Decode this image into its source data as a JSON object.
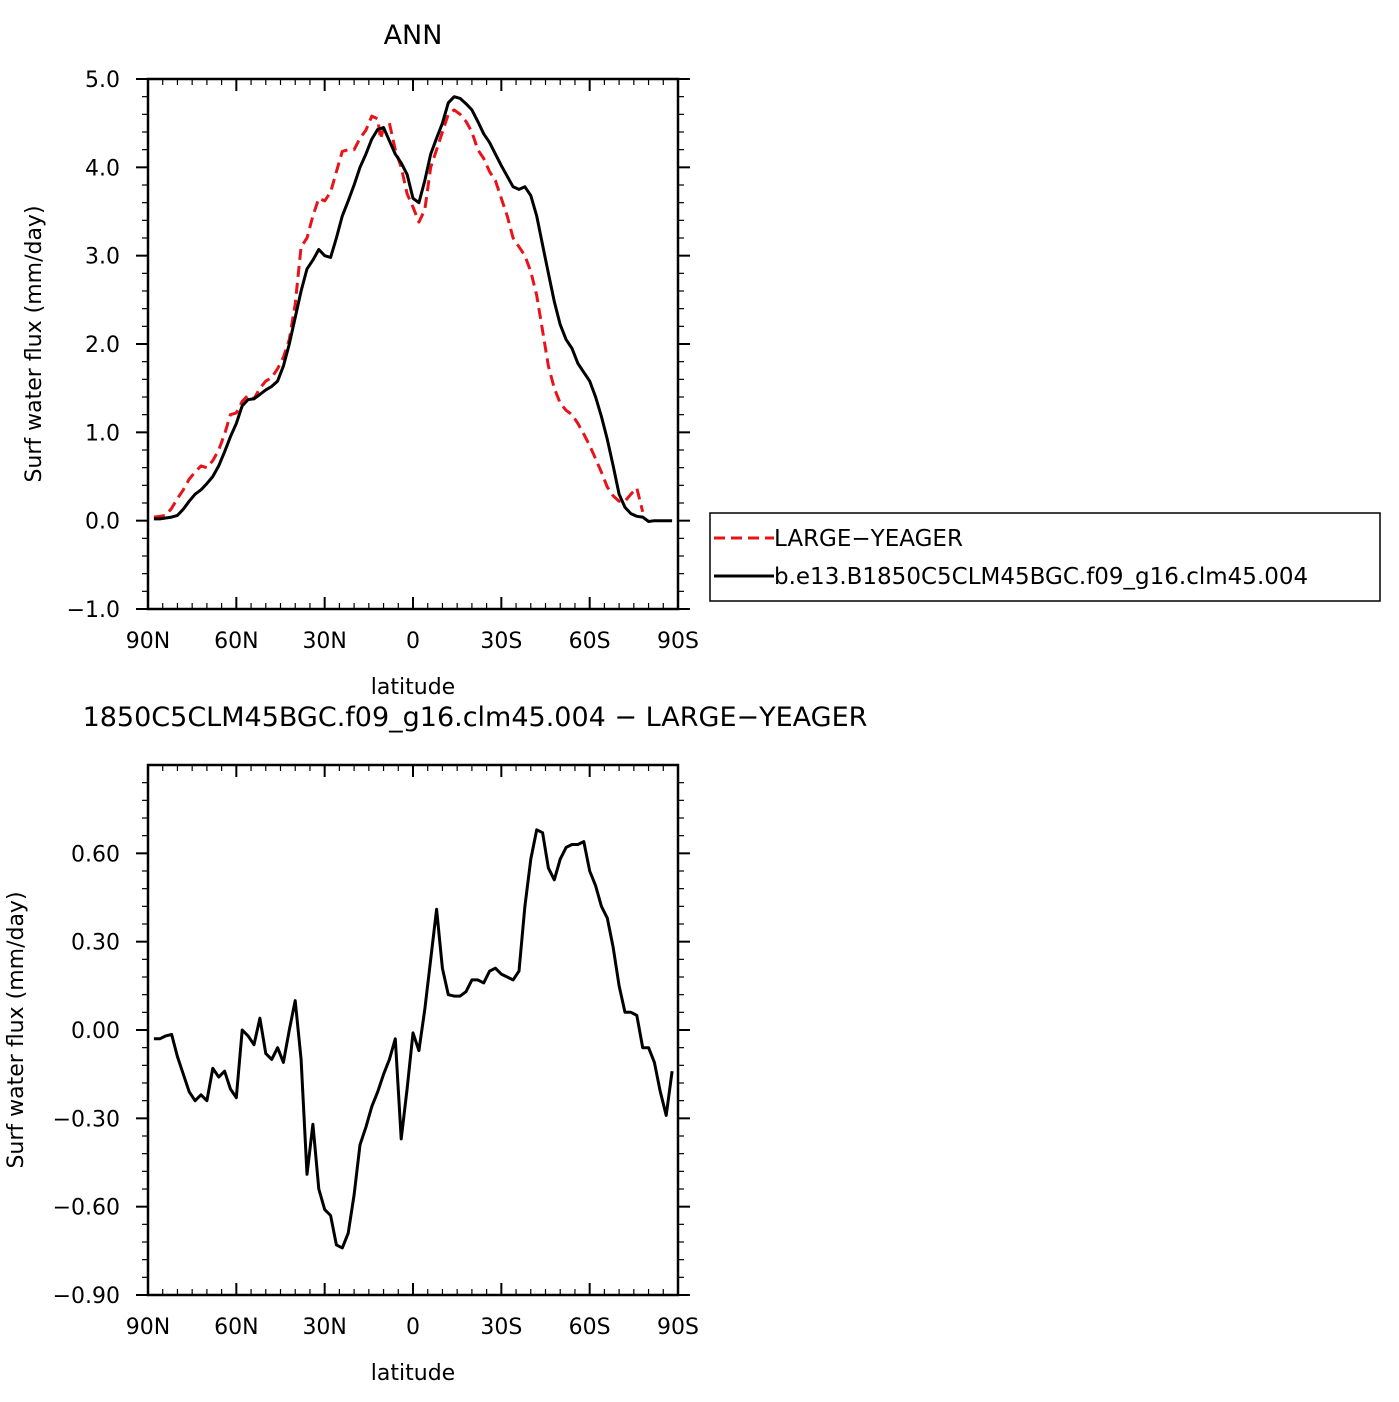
{
  "chart_data": [
    {
      "type": "line",
      "title": "ANN",
      "xlabel": "latitude",
      "ylabel": "Surf water flux (mm/day)",
      "xlim": [
        -90,
        90
      ],
      "ylim": [
        -1.0,
        5.0
      ],
      "x_tick_values": [
        -90,
        -60,
        -30,
        0,
        30,
        60,
        90
      ],
      "x_tick_labels": [
        "90N",
        "60N",
        "30N",
        "0",
        "30S",
        "60S",
        "90S"
      ],
      "y_tick_values": [
        -1.0,
        0.0,
        1.0,
        2.0,
        3.0,
        4.0,
        5.0
      ],
      "y_tick_labels": [
        "−1.0",
        "0.0",
        "1.0",
        "2.0",
        "3.0",
        "4.0",
        "5.0"
      ],
      "grid": false,
      "legend_position": "right",
      "series": [
        {
          "name": "LARGE−YEAGER",
          "color": "#e8141a",
          "dash": "dashed",
          "points": [
            [
              -88,
              0.04
            ],
            [
              -86,
              0.05
            ],
            [
              -84,
              0.06
            ],
            [
              -82,
              0.14
            ],
            [
              -80,
              0.25
            ],
            [
              -78,
              0.35
            ],
            [
              -76,
              0.47
            ],
            [
              -74,
              0.55
            ],
            [
              -72,
              0.62
            ],
            [
              -70,
              0.6
            ],
            [
              -68,
              0.68
            ],
            [
              -66,
              0.8
            ],
            [
              -64,
              0.98
            ],
            [
              -62,
              1.2
            ],
            [
              -60,
              1.22
            ],
            [
              -58,
              1.35
            ],
            [
              -56,
              1.42
            ],
            [
              -54,
              1.38
            ],
            [
              -52,
              1.5
            ],
            [
              -50,
              1.58
            ],
            [
              -48,
              1.62
            ],
            [
              -46,
              1.72
            ],
            [
              -44,
              1.85
            ],
            [
              -42,
              2.05
            ],
            [
              -40,
              2.45
            ],
            [
              -38,
              3.1
            ],
            [
              -36,
              3.2
            ],
            [
              -34,
              3.45
            ],
            [
              -32,
              3.65
            ],
            [
              -30,
              3.62
            ],
            [
              -28,
              3.72
            ],
            [
              -26,
              3.95
            ],
            [
              -24,
              4.18
            ],
            [
              -22,
              4.2
            ],
            [
              -20,
              4.2
            ],
            [
              -18,
              4.33
            ],
            [
              -16,
              4.42
            ],
            [
              -14,
              4.58
            ],
            [
              -12,
              4.55
            ],
            [
              -11,
              4.32
            ],
            [
              -10,
              4.45
            ],
            [
              -8,
              4.5
            ],
            [
              -6,
              4.2
            ],
            [
              -4,
              4.0
            ],
            [
              -2,
              3.7
            ],
            [
              0,
              3.55
            ],
            [
              2,
              3.38
            ],
            [
              4,
              3.52
            ],
            [
              6,
              4.0
            ],
            [
              8,
              4.2
            ],
            [
              10,
              4.4
            ],
            [
              12,
              4.6
            ],
            [
              14,
              4.65
            ],
            [
              16,
              4.6
            ],
            [
              18,
              4.52
            ],
            [
              20,
              4.4
            ],
            [
              22,
              4.2
            ],
            [
              24,
              4.1
            ],
            [
              26,
              3.95
            ],
            [
              28,
              3.85
            ],
            [
              30,
              3.65
            ],
            [
              32,
              3.45
            ],
            [
              34,
              3.2
            ],
            [
              36,
              3.1
            ],
            [
              38,
              3.0
            ],
            [
              40,
              2.82
            ],
            [
              42,
              2.55
            ],
            [
              44,
              2.15
            ],
            [
              46,
              1.75
            ],
            [
              48,
              1.5
            ],
            [
              50,
              1.33
            ],
            [
              52,
              1.25
            ],
            [
              54,
              1.2
            ],
            [
              56,
              1.1
            ],
            [
              58,
              0.98
            ],
            [
              60,
              0.85
            ],
            [
              62,
              0.7
            ],
            [
              64,
              0.55
            ],
            [
              66,
              0.38
            ],
            [
              68,
              0.28
            ],
            [
              70,
              0.22
            ],
            [
              72,
              0.22
            ],
            [
              74,
              0.3
            ],
            [
              76,
              0.37
            ],
            [
              78,
              0.1
            ]
          ]
        },
        {
          "name": "b.e13.B1850C5CLM45BGC.f09_g16.clm45.004",
          "color": "#000000",
          "dash": "solid",
          "points": [
            [
              -88,
              0.02
            ],
            [
              -86,
              0.02
            ],
            [
              -84,
              0.03
            ],
            [
              -82,
              0.04
            ],
            [
              -80,
              0.06
            ],
            [
              -78,
              0.13
            ],
            [
              -76,
              0.22
            ],
            [
              -74,
              0.3
            ],
            [
              -72,
              0.35
            ],
            [
              -70,
              0.42
            ],
            [
              -68,
              0.5
            ],
            [
              -66,
              0.62
            ],
            [
              -64,
              0.78
            ],
            [
              -62,
              0.95
            ],
            [
              -60,
              1.1
            ],
            [
              -58,
              1.3
            ],
            [
              -56,
              1.37
            ],
            [
              -54,
              1.38
            ],
            [
              -52,
              1.43
            ],
            [
              -50,
              1.48
            ],
            [
              -48,
              1.52
            ],
            [
              -46,
              1.58
            ],
            [
              -44,
              1.75
            ],
            [
              -42,
              2.0
            ],
            [
              -40,
              2.3
            ],
            [
              -38,
              2.6
            ],
            [
              -36,
              2.85
            ],
            [
              -34,
              2.95
            ],
            [
              -32,
              3.07
            ],
            [
              -30,
              3.0
            ],
            [
              -28,
              2.98
            ],
            [
              -26,
              3.2
            ],
            [
              -24,
              3.45
            ],
            [
              -22,
              3.62
            ],
            [
              -20,
              3.8
            ],
            [
              -18,
              4.0
            ],
            [
              -16,
              4.15
            ],
            [
              -14,
              4.32
            ],
            [
              -12,
              4.43
            ],
            [
              -10,
              4.45
            ],
            [
              -8,
              4.3
            ],
            [
              -6,
              4.15
            ],
            [
              -4,
              4.05
            ],
            [
              -2,
              3.92
            ],
            [
              0,
              3.65
            ],
            [
              2,
              3.6
            ],
            [
              4,
              3.85
            ],
            [
              6,
              4.15
            ],
            [
              8,
              4.33
            ],
            [
              10,
              4.5
            ],
            [
              12,
              4.73
            ],
            [
              14,
              4.8
            ],
            [
              16,
              4.78
            ],
            [
              18,
              4.72
            ],
            [
              20,
              4.65
            ],
            [
              22,
              4.52
            ],
            [
              24,
              4.38
            ],
            [
              26,
              4.28
            ],
            [
              28,
              4.15
            ],
            [
              30,
              4.02
            ],
            [
              32,
              3.9
            ],
            [
              34,
              3.78
            ],
            [
              36,
              3.75
            ],
            [
              38,
              3.78
            ],
            [
              40,
              3.68
            ],
            [
              42,
              3.45
            ],
            [
              44,
              3.12
            ],
            [
              46,
              2.8
            ],
            [
              48,
              2.48
            ],
            [
              50,
              2.22
            ],
            [
              52,
              2.05
            ],
            [
              54,
              1.95
            ],
            [
              56,
              1.78
            ],
            [
              58,
              1.68
            ],
            [
              60,
              1.58
            ],
            [
              62,
              1.4
            ],
            [
              64,
              1.18
            ],
            [
              66,
              0.92
            ],
            [
              68,
              0.62
            ],
            [
              70,
              0.3
            ],
            [
              72,
              0.15
            ],
            [
              74,
              0.08
            ],
            [
              76,
              0.05
            ],
            [
              78,
              0.04
            ],
            [
              80,
              -0.01
            ],
            [
              82,
              0.0
            ],
            [
              84,
              0.0
            ],
            [
              86,
              0.0
            ],
            [
              88,
              0.0
            ]
          ]
        }
      ]
    },
    {
      "type": "line",
      "title": "1850C5CLM45BGC.f09_g16.clm45.004 − LARGE−YEAGER",
      "xlabel": "latitude",
      "ylabel": "Surf water flux (mm/day)",
      "xlim": [
        -90,
        90
      ],
      "ylim": [
        -0.9,
        0.9
      ],
      "x_tick_values": [
        -90,
        -60,
        -30,
        0,
        30,
        60,
        90
      ],
      "x_tick_labels": [
        "90N",
        "60N",
        "30N",
        "0",
        "30S",
        "60S",
        "90S"
      ],
      "y_tick_values": [
        -0.9,
        -0.6,
        -0.3,
        0.0,
        0.3,
        0.6
      ],
      "y_tick_labels": [
        "−0.90",
        "−0.60",
        "−0.30",
        "0.00",
        "0.30",
        "0.60"
      ],
      "grid": false,
      "series": [
        {
          "color": "#000000",
          "dash": "solid",
          "points": [
            [
              -88,
              -0.03
            ],
            [
              -86,
              -0.03
            ],
            [
              -84,
              -0.02
            ],
            [
              -82,
              -0.015
            ],
            [
              -80,
              -0.09
            ],
            [
              -78,
              -0.15
            ],
            [
              -76,
              -0.21
            ],
            [
              -74,
              -0.24
            ],
            [
              -72,
              -0.22
            ],
            [
              -70,
              -0.24
            ],
            [
              -68,
              -0.13
            ],
            [
              -66,
              -0.16
            ],
            [
              -64,
              -0.14
            ],
            [
              -62,
              -0.2
            ],
            [
              -60,
              -0.23
            ],
            [
              -58,
              0.0
            ],
            [
              -56,
              -0.02
            ],
            [
              -54,
              -0.05
            ],
            [
              -52,
              0.04
            ],
            [
              -50,
              -0.08
            ],
            [
              -48,
              -0.1
            ],
            [
              -46,
              -0.06
            ],
            [
              -44,
              -0.11
            ],
            [
              -42,
              -0.0
            ],
            [
              -40,
              0.1
            ],
            [
              -38,
              -0.1
            ],
            [
              -36,
              -0.49
            ],
            [
              -34,
              -0.32
            ],
            [
              -32,
              -0.54
            ],
            [
              -30,
              -0.61
            ],
            [
              -28,
              -0.63
            ],
            [
              -26,
              -0.73
            ],
            [
              -24,
              -0.74
            ],
            [
              -22,
              -0.69
            ],
            [
              -20,
              -0.56
            ],
            [
              -18,
              -0.39
            ],
            [
              -16,
              -0.33
            ],
            [
              -14,
              -0.26
            ],
            [
              -12,
              -0.21
            ],
            [
              -10,
              -0.15
            ],
            [
              -8,
              -0.1
            ],
            [
              -6,
              -0.03
            ],
            [
              -4,
              -0.37
            ],
            [
              -2,
              -0.2
            ],
            [
              0,
              -0.01
            ],
            [
              2,
              -0.07
            ],
            [
              4,
              0.07
            ],
            [
              6,
              0.24
            ],
            [
              8,
              0.41
            ],
            [
              10,
              0.21
            ],
            [
              12,
              0.12
            ],
            [
              14,
              0.115
            ],
            [
              16,
              0.115
            ],
            [
              18,
              0.13
            ],
            [
              20,
              0.17
            ],
            [
              22,
              0.17
            ],
            [
              24,
              0.16
            ],
            [
              26,
              0.2
            ],
            [
              28,
              0.21
            ],
            [
              30,
              0.19
            ],
            [
              32,
              0.18
            ],
            [
              34,
              0.17
            ],
            [
              36,
              0.2
            ],
            [
              38,
              0.42
            ],
            [
              40,
              0.58
            ],
            [
              42,
              0.68
            ],
            [
              44,
              0.67
            ],
            [
              46,
              0.55
            ],
            [
              48,
              0.51
            ],
            [
              50,
              0.58
            ],
            [
              52,
              0.62
            ],
            [
              54,
              0.63
            ],
            [
              56,
              0.63
            ],
            [
              58,
              0.64
            ],
            [
              60,
              0.54
            ],
            [
              62,
              0.49
            ],
            [
              64,
              0.42
            ],
            [
              66,
              0.38
            ],
            [
              68,
              0.28
            ],
            [
              70,
              0.15
            ],
            [
              72,
              0.06
            ],
            [
              74,
              0.06
            ],
            [
              76,
              0.05
            ],
            [
              78,
              -0.06
            ],
            [
              80,
              -0.06
            ],
            [
              82,
              -0.11
            ],
            [
              84,
              -0.21
            ],
            [
              86,
              -0.29
            ],
            [
              88,
              -0.14
            ]
          ]
        }
      ]
    }
  ]
}
